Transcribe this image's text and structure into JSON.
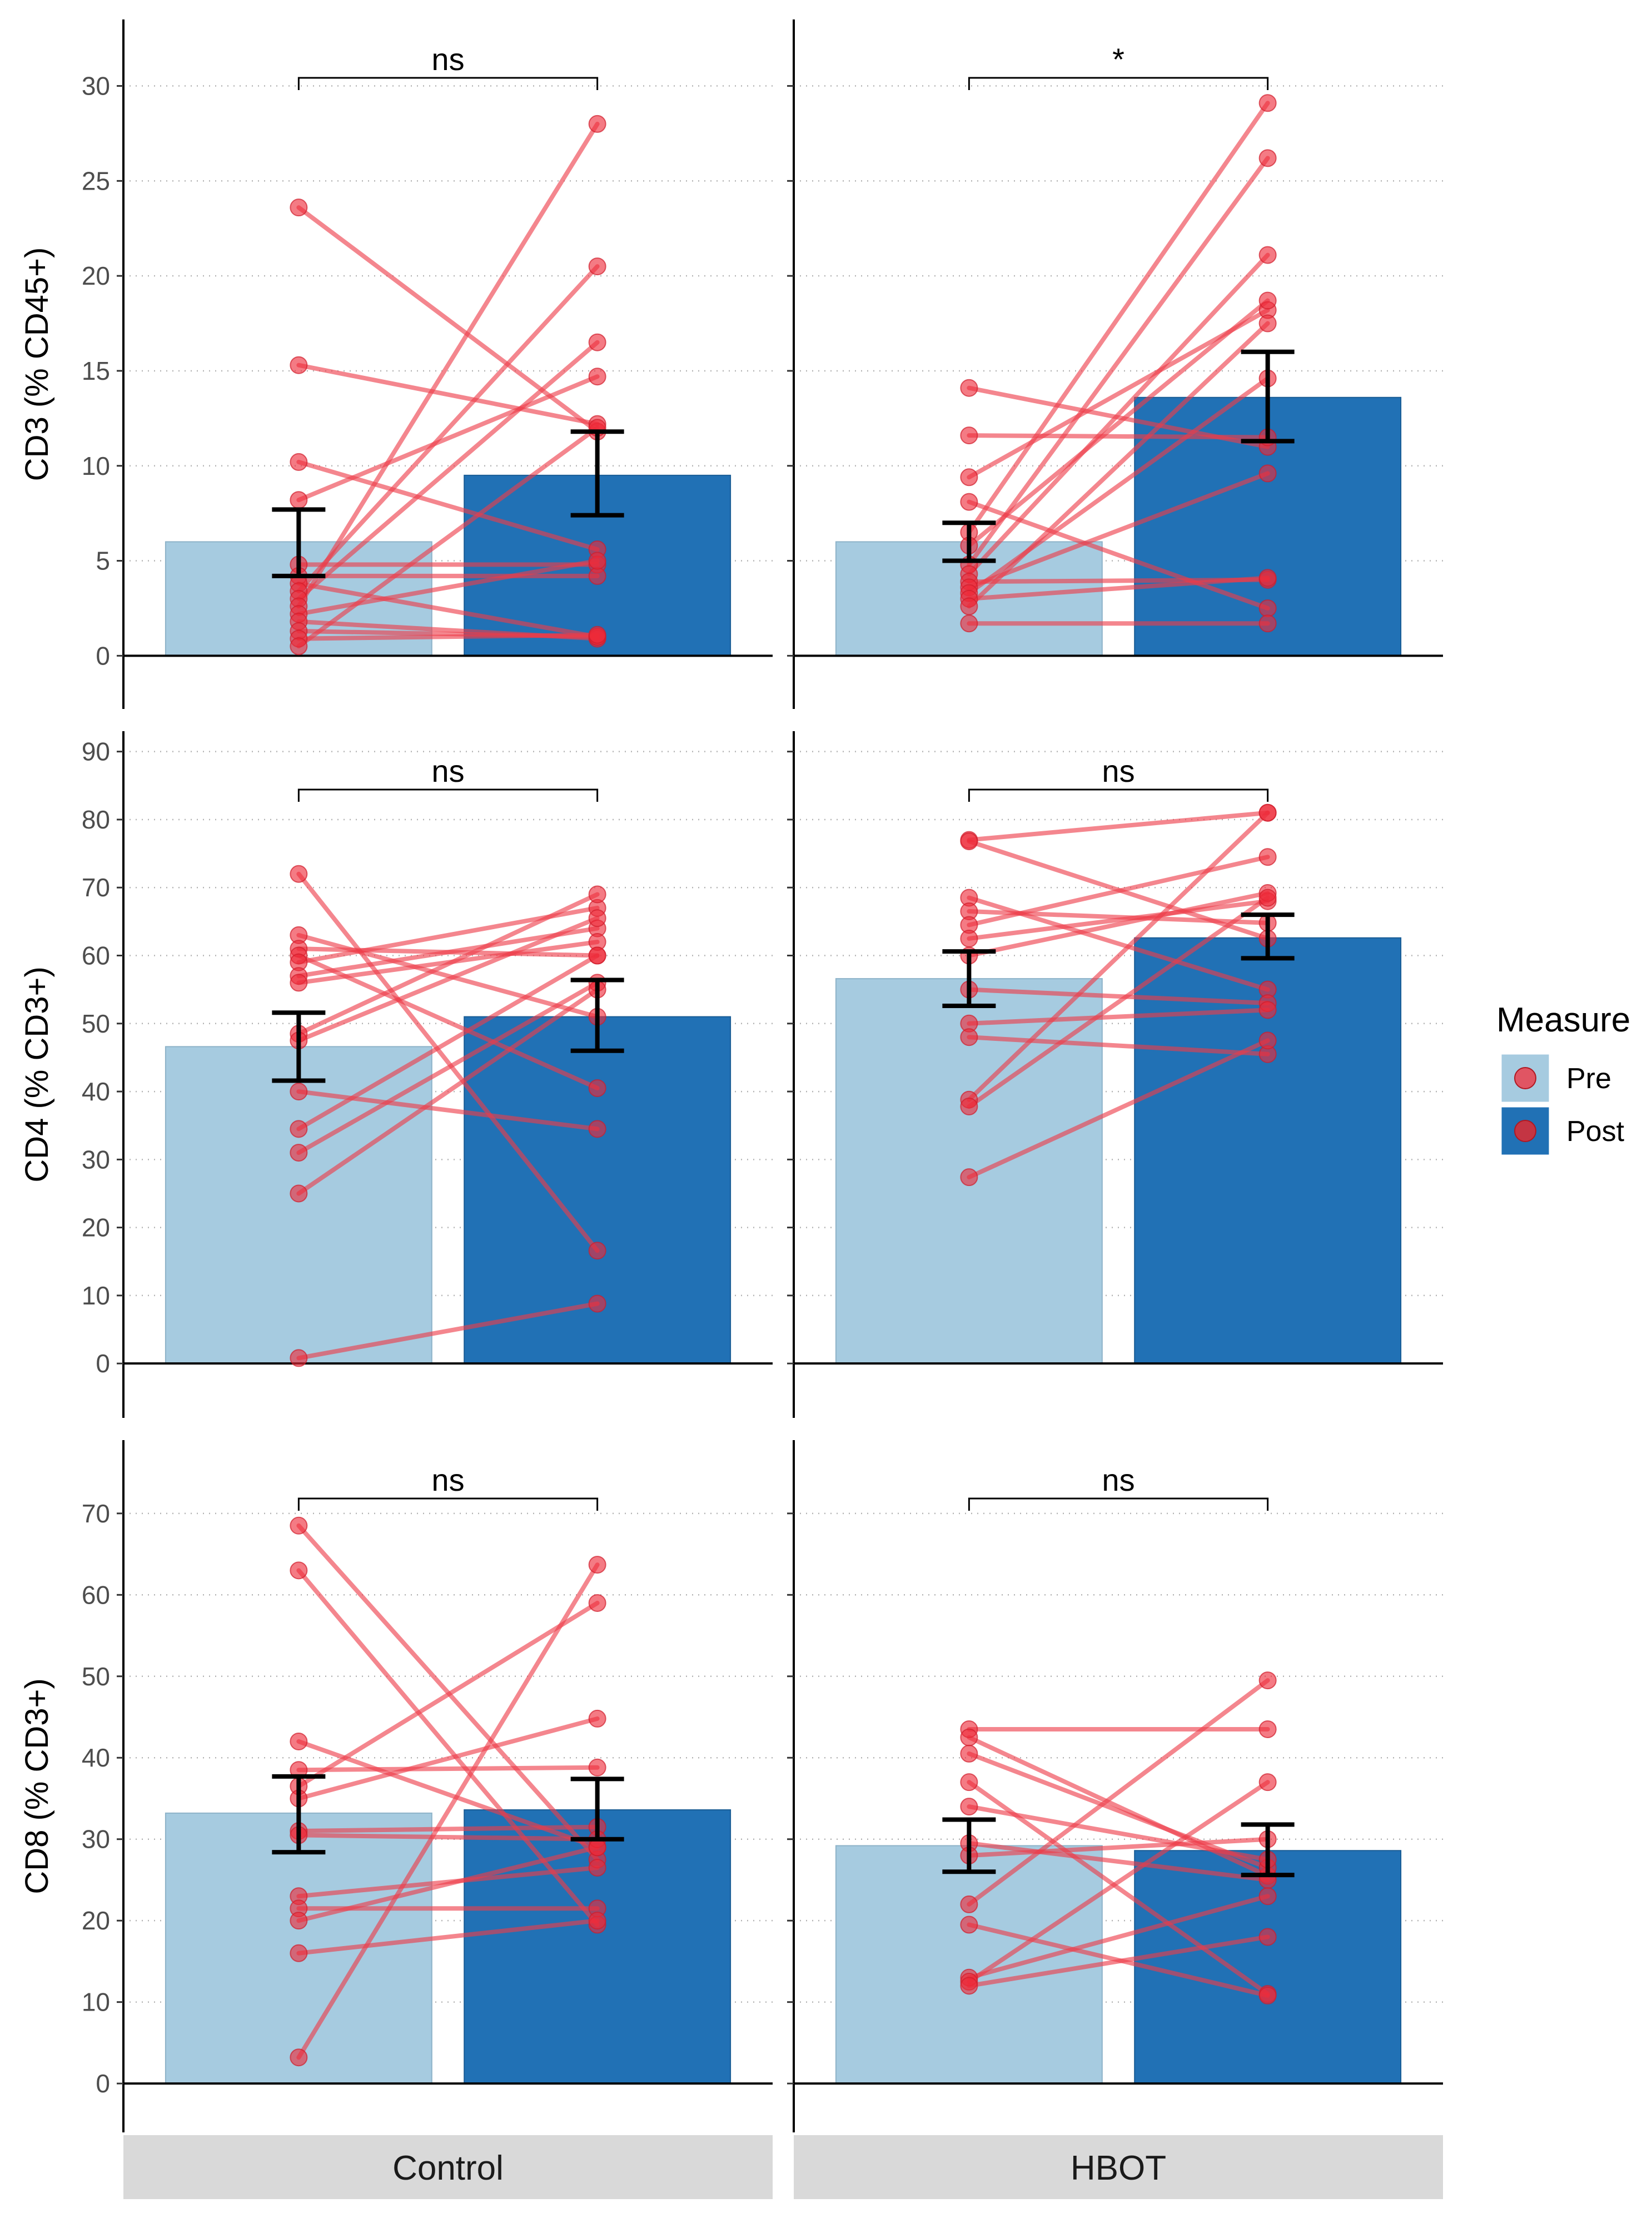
{
  "chart_data": {
    "type": "bar",
    "facets": [
      "Control",
      "HBOT"
    ],
    "legend": {
      "title": "Measure",
      "position": "right",
      "entries": [
        {
          "label": "Pre",
          "bar_color": "#a6cbe0",
          "point_color": "#e05563"
        },
        {
          "label": "Post",
          "bar_color": "#2171b5",
          "point_color": "#c43543"
        }
      ]
    },
    "colors": {
      "pre_bar": "#a6cbe0",
      "post_bar": "#2171b5",
      "line": "#ee3b48",
      "point": "#ee2a38",
      "error_bar": "#000000",
      "grid": "#b3b3b3",
      "strip_bg": "#d9d9d9"
    },
    "panels": [
      {
        "ylabel": "CD3 (% CD45+)",
        "ylim": [
          -2.8,
          33.5
        ],
        "yticks": [
          0,
          5,
          10,
          15,
          20,
          25,
          30
        ],
        "groups": [
          {
            "facet": "Control",
            "significance": "ns",
            "pre_mean": 6.0,
            "pre_err": [
              4.2,
              7.7
            ],
            "post_mean": 9.5,
            "post_err": [
              7.4,
              11.8
            ],
            "pairs": [
              [
                23.6,
                11.8
              ],
              [
                15.3,
                12.2
              ],
              [
                10.2,
                5.6
              ],
              [
                8.2,
                14.7
              ],
              [
                4.8,
                4.8
              ],
              [
                4.2,
                4.2
              ],
              [
                3.8,
                1.0
              ],
              [
                3.4,
                20.5
              ],
              [
                3.0,
                16.5
              ],
              [
                2.6,
                28.0
              ],
              [
                2.2,
                5.0
              ],
              [
                1.8,
                0.9
              ],
              [
                1.3,
                1.0
              ],
              [
                0.9,
                1.1
              ],
              [
                0.5,
                12.0
              ]
            ]
          },
          {
            "facet": "HBOT",
            "significance": "*",
            "pre_mean": 6.0,
            "pre_err": [
              5.0,
              7.0
            ],
            "post_mean": 13.6,
            "post_err": [
              11.3,
              16.0
            ],
            "pairs": [
              [
                14.1,
                11.0
              ],
              [
                11.6,
                11.5
              ],
              [
                9.4,
                18.2
              ],
              [
                8.1,
                2.5
              ],
              [
                6.5,
                29.1
              ],
              [
                5.8,
                18.7
              ],
              [
                4.8,
                26.2
              ],
              [
                4.3,
                21.1
              ],
              [
                3.9,
                4.0
              ],
              [
                3.6,
                9.6
              ],
              [
                3.3,
                14.6
              ],
              [
                3.0,
                4.1
              ],
              [
                2.6,
                17.5
              ],
              [
                1.7,
                1.7
              ]
            ]
          }
        ]
      },
      {
        "ylabel": "CD4 (% CD3+)",
        "ylim": [
          -8,
          93
        ],
        "yticks": [
          0,
          10,
          20,
          30,
          40,
          50,
          60,
          70,
          80,
          90
        ],
        "groups": [
          {
            "facet": "Control",
            "significance": "ns",
            "pre_mean": 46.6,
            "pre_err": [
              41.6,
              51.6
            ],
            "post_mean": 51.0,
            "post_err": [
              46.0,
              56.4
            ],
            "pairs": [
              [
                72.0,
                16.6
              ],
              [
                63.0,
                51.0
              ],
              [
                61.0,
                60.0
              ],
              [
                60.0,
                40.5
              ],
              [
                59.0,
                67.0
              ],
              [
                57.0,
                64.0
              ],
              [
                56.0,
                62.0
              ],
              [
                48.5,
                69.0
              ],
              [
                47.5,
                65.5
              ],
              [
                40.0,
                34.5
              ],
              [
                34.5,
                60.0
              ],
              [
                31.0,
                56.0
              ],
              [
                25.0,
                55.0
              ],
              [
                0.8,
                8.8
              ]
            ]
          },
          {
            "facet": "HBOT",
            "significance": "ns",
            "pre_mean": 56.6,
            "pre_err": [
              52.6,
              60.6
            ],
            "post_mean": 62.6,
            "post_err": [
              59.6,
              66.0
            ],
            "pairs": [
              [
                77.0,
                81.0
              ],
              [
                76.8,
                62.5
              ],
              [
                68.5,
                55.0
              ],
              [
                66.5,
                64.8
              ],
              [
                64.5,
                74.5
              ],
              [
                62.5,
                68.0
              ],
              [
                60.0,
                69.2
              ],
              [
                55.0,
                53.0
              ],
              [
                50.0,
                52.0
              ],
              [
                48.0,
                45.5
              ],
              [
                38.8,
                81.0
              ],
              [
                37.8,
                68.5
              ],
              [
                27.4,
                47.5
              ]
            ]
          }
        ]
      },
      {
        "ylabel": "CD8 (% CD3+)",
        "ylim": [
          -6,
          79
        ],
        "yticks": [
          0,
          10,
          20,
          30,
          40,
          50,
          60,
          70
        ],
        "groups": [
          {
            "facet": "Control",
            "significance": "ns",
            "pre_mean": 33.2,
            "pre_err": [
              28.4,
              37.7
            ],
            "post_mean": 33.6,
            "post_err": [
              30.0,
              37.4
            ],
            "pairs": [
              [
                68.5,
                27.5
              ],
              [
                63.0,
                19.5
              ],
              [
                42.0,
                29.0
              ],
              [
                38.5,
                38.8
              ],
              [
                36.5,
                59.0
              ],
              [
                35.0,
                44.8
              ],
              [
                31.0,
                31.5
              ],
              [
                30.5,
                30.0
              ],
              [
                23.0,
                26.5
              ],
              [
                21.5,
                21.5
              ],
              [
                20.0,
                29.0
              ],
              [
                16.0,
                20.0
              ],
              [
                3.2,
                63.7
              ]
            ]
          },
          {
            "facet": "HBOT",
            "significance": "ns",
            "pre_mean": 29.2,
            "pre_err": [
              26.0,
              32.4
            ],
            "post_mean": 28.6,
            "post_err": [
              25.6,
              31.8
            ],
            "pairs": [
              [
                43.5,
                43.5
              ],
              [
                42.5,
                25.5
              ],
              [
                40.5,
                26.5
              ],
              [
                37.0,
                11.0
              ],
              [
                34.0,
                27.5
              ],
              [
                29.5,
                25.0
              ],
              [
                28.0,
                30.0
              ],
              [
                22.0,
                49.5
              ],
              [
                19.5,
                10.8
              ],
              [
                13.0,
                23.0
              ],
              [
                12.5,
                37.0
              ],
              [
                12.0,
                18.0
              ]
            ]
          }
        ]
      }
    ]
  }
}
